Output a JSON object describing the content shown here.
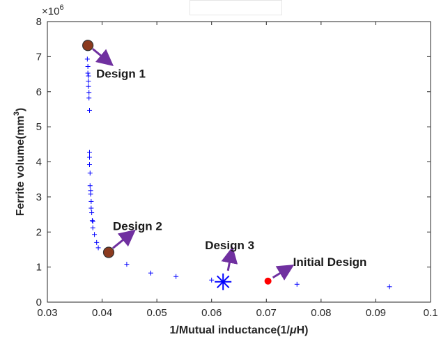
{
  "chart_data": {
    "type": "scatter",
    "xlabel_main": "1/Mutual inductance(1/",
    "xlabel_mu": "μ",
    "xlabel_end": "H)",
    "ylabel_main": "Ferrite volume(mm",
    "ylabel_sup": "3",
    "ylabel_end": ")",
    "y_exponent_base": "×10",
    "y_exponent_power": "6",
    "xlim": [
      0.03,
      0.1
    ],
    "ylim": [
      0,
      8
    ],
    "x_ticks": [
      "0.03",
      "0.04",
      "0.05",
      "0.06",
      "0.07",
      "0.08",
      "0.09",
      "0.1"
    ],
    "y_ticks": [
      "0",
      "1",
      "2",
      "3",
      "4",
      "5",
      "6",
      "7",
      "8"
    ],
    "grid": false,
    "colors": {
      "pareto": "#0000ff",
      "design_marker": "#8b3a1e",
      "initial": "#ff0000",
      "arrow": "#7030a0",
      "axis": "#262626"
    },
    "pareto_points": [
      [
        0.0373,
        6.93
      ],
      [
        0.0374,
        6.72
      ],
      [
        0.0374,
        6.53
      ],
      [
        0.0375,
        6.45
      ],
      [
        0.0375,
        6.3
      ],
      [
        0.0375,
        6.15
      ],
      [
        0.0376,
        5.98
      ],
      [
        0.0376,
        5.82
      ],
      [
        0.0377,
        5.47
      ],
      [
        0.0377,
        4.27
      ],
      [
        0.0377,
        4.13
      ],
      [
        0.0377,
        3.92
      ],
      [
        0.0378,
        3.68
      ],
      [
        0.0378,
        3.32
      ],
      [
        0.0379,
        3.18
      ],
      [
        0.0379,
        3.08
      ],
      [
        0.038,
        2.87
      ],
      [
        0.038,
        2.68
      ],
      [
        0.0381,
        2.55
      ],
      [
        0.0382,
        2.33
      ],
      [
        0.0383,
        2.3
      ],
      [
        0.0383,
        2.12
      ],
      [
        0.0386,
        1.93
      ],
      [
        0.039,
        1.7
      ],
      [
        0.0393,
        1.55
      ],
      [
        0.0445,
        1.08
      ],
      [
        0.0489,
        0.83
      ],
      [
        0.0535,
        0.73
      ],
      [
        0.06,
        0.63
      ],
      [
        0.0756,
        0.51
      ],
      [
        0.0925,
        0.44
      ]
    ],
    "designs": [
      {
        "label": "Design 1",
        "x": 0.0374,
        "y": 7.32,
        "marker": "circle-brown"
      },
      {
        "label": "Design 2",
        "x": 0.0412,
        "y": 1.42,
        "marker": "circle-brown"
      },
      {
        "label": "Design 3",
        "x": 0.0621,
        "y": 0.58,
        "marker": "asterisk-blue"
      },
      {
        "label": "Initial Design",
        "x": 0.0703,
        "y": 0.6,
        "marker": "dot-red"
      }
    ]
  }
}
